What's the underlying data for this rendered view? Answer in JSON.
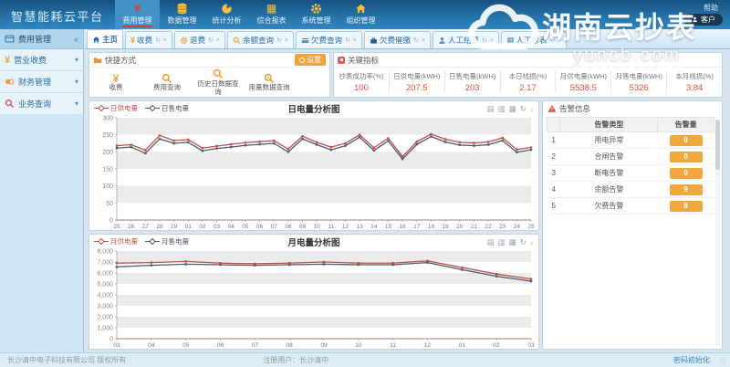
{
  "app": {
    "title": "智慧能耗云平台",
    "help_label": "帮助",
    "user_label": "客户"
  },
  "watermark": {
    "text": "湖南云抄表",
    "domain": "yuncb.com"
  },
  "top_menu": {
    "items": [
      {
        "label": "费用管理",
        "icon": "yen-icon",
        "active": true
      },
      {
        "label": "数据管理",
        "icon": "database-icon"
      },
      {
        "label": "统计分析",
        "icon": "pie-chart-icon"
      },
      {
        "label": "综合报表",
        "icon": "table-icon"
      },
      {
        "label": "系统管理",
        "icon": "gear-icon"
      },
      {
        "label": "组织管理",
        "icon": "home-icon"
      }
    ]
  },
  "sidebar": {
    "header": "费用管理",
    "collapse": "«",
    "items": [
      {
        "label": "营业收费",
        "icon": "yen-icon"
      },
      {
        "label": "财务管理",
        "icon": "coins-icon"
      },
      {
        "label": "业务查询",
        "icon": "search-icon"
      }
    ]
  },
  "tabs": {
    "items": [
      {
        "label": "主页",
        "icon": "home-icon",
        "active": true
      },
      {
        "label": "收费",
        "icon": "yen-icon"
      },
      {
        "label": "退费",
        "icon": "gear-icon"
      },
      {
        "label": "余额查询",
        "icon": "search-icon"
      },
      {
        "label": "欠费查询",
        "icon": "card-icon"
      },
      {
        "label": "欠费催缴",
        "icon": "briefcase-icon"
      },
      {
        "label": "人工结算",
        "icon": "person-icon"
      },
      {
        "label": "人工抄表",
        "icon": "table-icon"
      }
    ],
    "refresh_glyph": "↻",
    "close_glyph": "×"
  },
  "quick": {
    "title": "快捷方式",
    "settings_label": "设置",
    "items": [
      {
        "label": "收费",
        "icon": "yen-icon"
      },
      {
        "label": "费用查询",
        "icon": "search-icon"
      },
      {
        "label": "历史日数据查询",
        "icon": "search-icon"
      },
      {
        "label": "用量数据查询",
        "icon": "search-data-icon"
      }
    ]
  },
  "kpi": {
    "title": "关键指标",
    "items": [
      {
        "label": "抄表成功率(%)",
        "value": "100"
      },
      {
        "label": "日供电量(kWH)",
        "value": "207.5"
      },
      {
        "label": "日售电量(kWH)",
        "value": "203"
      },
      {
        "label": "本日线损(%)",
        "value": "2.17"
      },
      {
        "label": "月供电量(kWH)",
        "value": "5538.5"
      },
      {
        "label": "月售电量(kWH)",
        "value": "5326"
      },
      {
        "label": "本月线损(%)",
        "value": "3.84"
      }
    ]
  },
  "alarm": {
    "title": "告警信息",
    "col_no": "",
    "col_type": "告警类型",
    "col_count": "告警量",
    "rows": [
      {
        "no": "1",
        "type": "用电异常",
        "count": "0"
      },
      {
        "no": "2",
        "type": "合闸告警",
        "count": "0"
      },
      {
        "no": "3",
        "type": "断电告警",
        "count": "0"
      },
      {
        "no": "4",
        "type": "余额告警",
        "count": "9"
      },
      {
        "no": "5",
        "type": "欠费告警",
        "count": "8"
      }
    ]
  },
  "footer": {
    "copyright": "长沙清中电子科技有限公司 版权所有",
    "registered_user": "注册用户：长沙清中",
    "password_link": "密码初始化",
    "grip": "||"
  },
  "chart_data": [
    {
      "type": "line",
      "title": "日电量分析图",
      "x": [
        "25",
        "26",
        "27",
        "28",
        "29",
        "01",
        "02",
        "03",
        "04",
        "05",
        "06",
        "07",
        "08",
        "09",
        "10",
        "11",
        "12",
        "13",
        "14",
        "15",
        "16",
        "17",
        "18",
        "19",
        "20",
        "21",
        "22",
        "23",
        "24",
        "25"
      ],
      "ylim": [
        0,
        300
      ],
      "yticks": [
        0,
        50,
        100,
        150,
        200,
        250,
        300
      ],
      "grid": "striped-bands",
      "legend_position": "top-left",
      "series": [
        {
          "name": "日供电量",
          "color": "#c0504d",
          "values": [
            218,
            221,
            205,
            248,
            233,
            236,
            211,
            217,
            222,
            227,
            230,
            233,
            208,
            246,
            228,
            214,
            225,
            250,
            212,
            240,
            186,
            230,
            252,
            237,
            228,
            226,
            229,
            241,
            207,
            213
          ]
        },
        {
          "name": "日售电量",
          "color": "#4f5b67",
          "values": [
            211,
            214,
            196,
            238,
            225,
            228,
            203,
            210,
            214,
            219,
            222,
            225,
            200,
            238,
            221,
            206,
            218,
            243,
            204,
            232,
            179,
            222,
            245,
            229,
            220,
            218,
            221,
            233,
            199,
            206
          ]
        }
      ]
    },
    {
      "type": "line",
      "title": "月电量分析图",
      "x": [
        "03",
        "04",
        "05",
        "06",
        "07",
        "08",
        "09",
        "10",
        "11",
        "12",
        "01",
        "02",
        "03"
      ],
      "ylim": [
        0,
        8000
      ],
      "yticks": [
        0,
        1000,
        2000,
        3000,
        4000,
        5000,
        6000,
        7000,
        8000
      ],
      "grid": "striped-bands",
      "legend_position": "top-left",
      "series": [
        {
          "name": "月供电量",
          "color": "#c0504d",
          "values": [
            6900,
            6950,
            7050,
            6900,
            6850,
            6900,
            7000,
            6900,
            6900,
            7100,
            6500,
            5900,
            5450
          ]
        },
        {
          "name": "月售电量",
          "color": "#4f5b67",
          "values": [
            6550,
            6700,
            6800,
            6750,
            6700,
            6750,
            6800,
            6750,
            6750,
            6950,
            6300,
            5700,
            5250
          ]
        }
      ]
    }
  ]
}
